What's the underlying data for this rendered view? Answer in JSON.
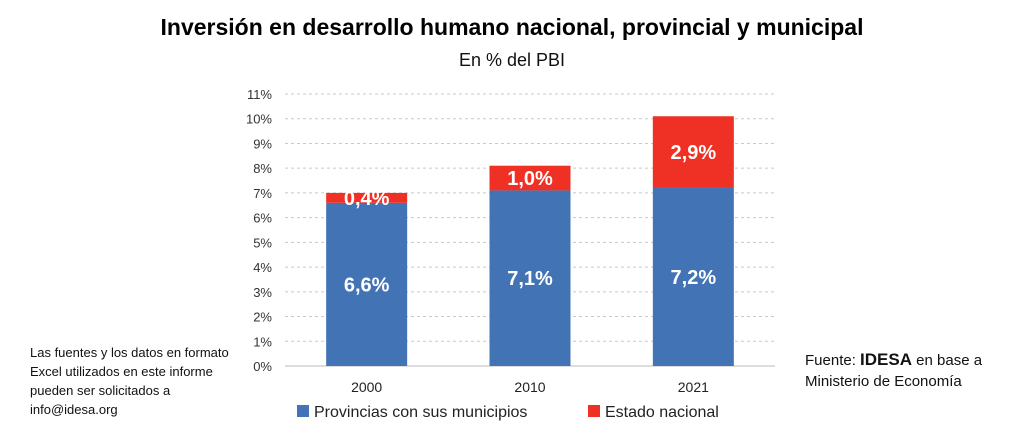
{
  "chart_data": {
    "type": "bar",
    "stacked": true,
    "title": "Inversión en desarrollo humano nacional, provincial y municipal",
    "subtitle": "En % del PBI",
    "categories": [
      "2000",
      "2010",
      "2021"
    ],
    "series": [
      {
        "name": "Provincias con sus municipios",
        "color": "#4273b4",
        "values": [
          6.6,
          7.1,
          7.2
        ],
        "labels": [
          "6,6%",
          "7,1%",
          "7,2%"
        ]
      },
      {
        "name": "Estado nacional",
        "color": "#ee3124",
        "values": [
          0.4,
          1.0,
          2.9
        ],
        "labels": [
          "0,4%",
          "1,0%",
          "2,9%"
        ]
      }
    ],
    "ylim": [
      0,
      11
    ],
    "yticks": [
      "0%",
      "1%",
      "2%",
      "3%",
      "4%",
      "5%",
      "6%",
      "7%",
      "8%",
      "9%",
      "10%",
      "11%"
    ],
    "grid": true,
    "legend": "bottom"
  },
  "note": "Las fuentes y los datos en formato Excel utilizados en este informe pueden ser solicitados a info@idesa.org",
  "source": {
    "prefix": "Fuente: ",
    "brand": "IDESA",
    "suffix": " en base a Ministerio de Economía"
  }
}
